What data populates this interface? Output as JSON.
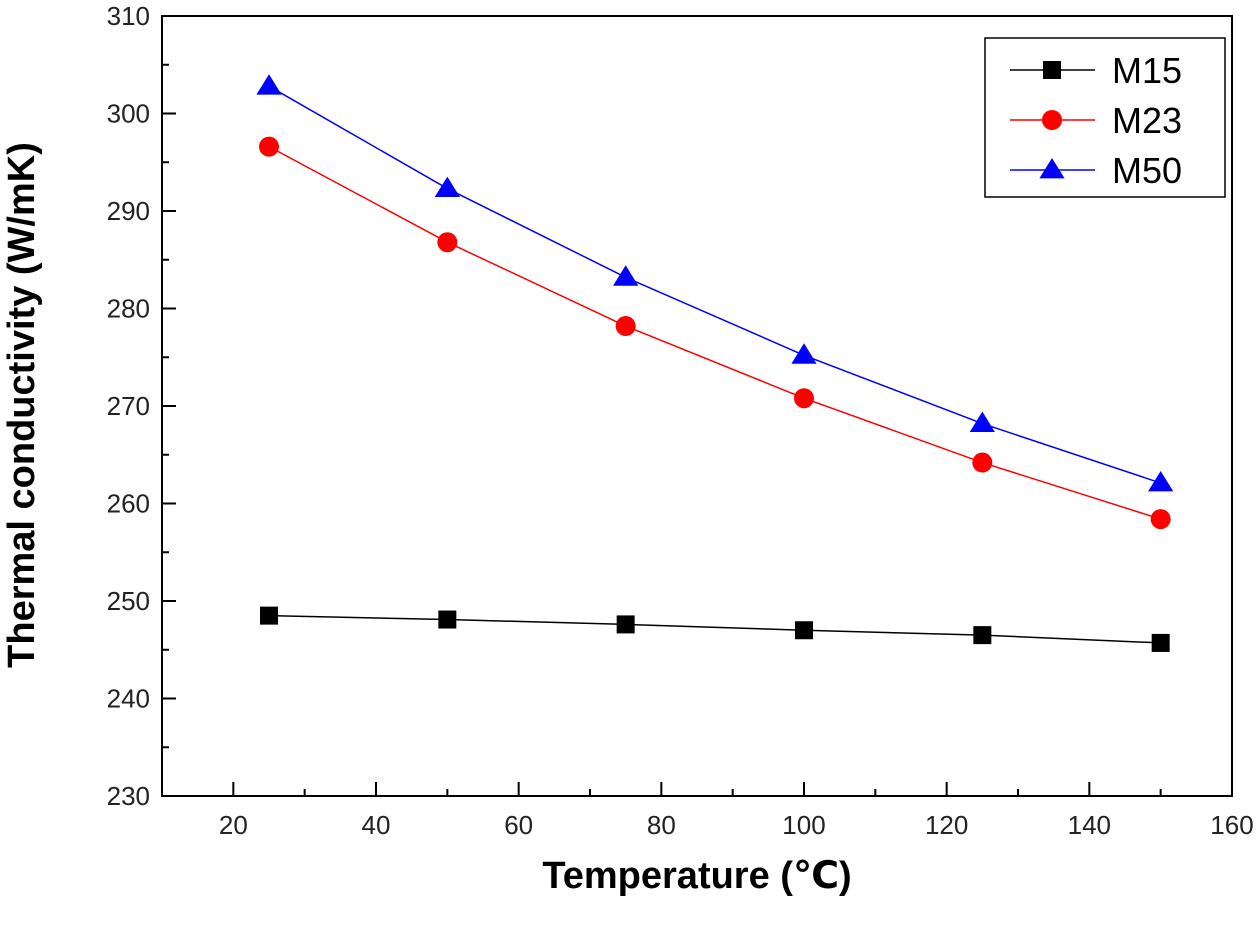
{
  "chart_data": {
    "type": "line",
    "title": "",
    "xlabel": "Temperature (℃)",
    "ylabel": "Thermal conductivity (W/mK)",
    "xlim": [
      10,
      160
    ],
    "ylim": [
      230,
      310
    ],
    "xticks": [
      20,
      40,
      60,
      80,
      100,
      120,
      140,
      160
    ],
    "yticks": [
      230,
      240,
      250,
      260,
      270,
      280,
      290,
      300,
      310
    ],
    "grid": false,
    "legend": "top-right",
    "x": [
      25,
      50,
      75,
      100,
      125,
      150
    ],
    "series": [
      {
        "name": "M15",
        "color": "#000000",
        "marker": "square",
        "values": [
          248.5,
          248.1,
          247.6,
          247.0,
          246.5,
          245.7
        ]
      },
      {
        "name": "M23",
        "color": "#ff0000",
        "marker": "circle",
        "values": [
          296.6,
          286.8,
          278.2,
          270.8,
          264.2,
          258.4
        ]
      },
      {
        "name": "M50",
        "color": "#0000ff",
        "marker": "triangle",
        "values": [
          302.8,
          292.3,
          283.2,
          275.2,
          268.2,
          262.1
        ]
      }
    ]
  }
}
